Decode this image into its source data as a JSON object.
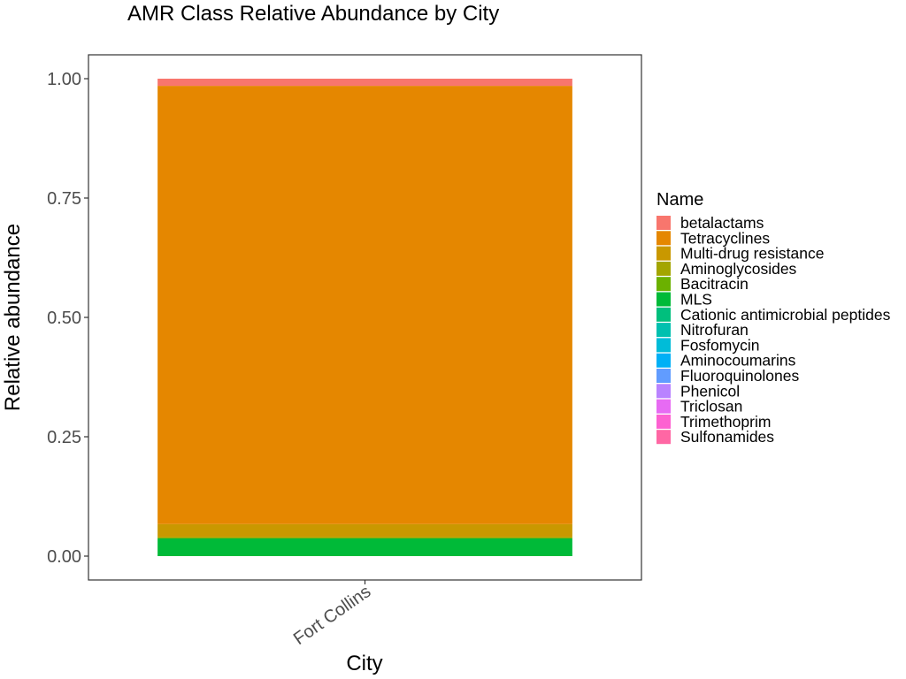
{
  "chart_data": {
    "type": "bar",
    "stacked": true,
    "title": "AMR Class Relative Abundance by City",
    "xlabel": "City",
    "ylabel": "Relative abundance",
    "categories": [
      "Fort Collins"
    ],
    "ylim": [
      -0.05,
      1.05
    ],
    "yticks": [
      0.0,
      0.25,
      0.5,
      0.75,
      1.0
    ],
    "ytick_labels": [
      "0.00",
      "0.25",
      "0.50",
      "0.75",
      "1.00"
    ],
    "grid": false,
    "legend_position": "right",
    "legend_title": "Name",
    "series": [
      {
        "name": "betalactams",
        "color": "#F8766D",
        "values": [
          0.015
        ]
      },
      {
        "name": "Tetracyclines",
        "color": "#E58700",
        "values": [
          0.918
        ]
      },
      {
        "name": "Multi-drug resistance",
        "color": "#C99800",
        "values": [
          0.027
        ]
      },
      {
        "name": "Aminoglycosides",
        "color": "#A3A500",
        "values": [
          0.002
        ]
      },
      {
        "name": "Bacitracin",
        "color": "#6BB100",
        "values": [
          0.001
        ]
      },
      {
        "name": "MLS",
        "color": "#00BA38",
        "values": [
          0.037
        ]
      },
      {
        "name": "Cationic antimicrobial peptides",
        "color": "#00BF7D",
        "values": [
          0.0
        ]
      },
      {
        "name": "Nitrofuran",
        "color": "#00C0AF",
        "values": [
          0.0
        ]
      },
      {
        "name": "Fosfomycin",
        "color": "#00BCD8",
        "values": [
          0.0
        ]
      },
      {
        "name": "Aminocoumarins",
        "color": "#00B0F6",
        "values": [
          0.0
        ]
      },
      {
        "name": "Fluoroquinolones",
        "color": "#619CFF",
        "values": [
          0.0
        ]
      },
      {
        "name": "Phenicol",
        "color": "#B983FF",
        "values": [
          0.0
        ]
      },
      {
        "name": "Triclosan",
        "color": "#E76BF3",
        "values": [
          0.0
        ]
      },
      {
        "name": "Trimethoprim",
        "color": "#FD61D1",
        "values": [
          0.0
        ]
      },
      {
        "name": "Sulfonamides",
        "color": "#FF67A4",
        "values": [
          0.0
        ]
      }
    ]
  }
}
